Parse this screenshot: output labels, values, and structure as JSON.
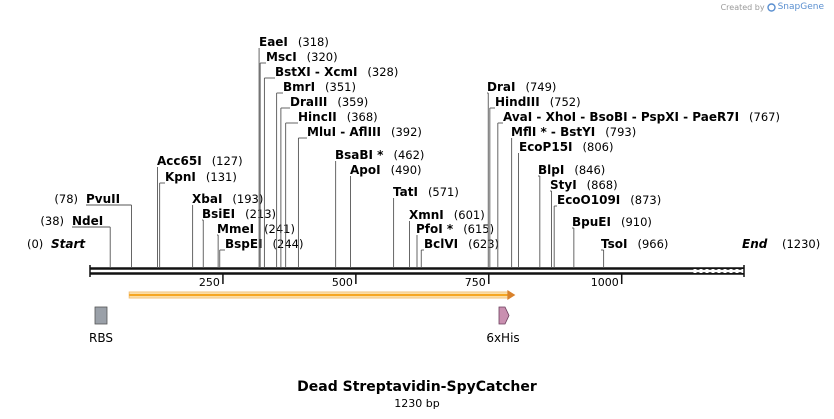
{
  "credit": {
    "prefix": "Created by",
    "brand": "SnapGene",
    "logo_icon": "snapgene-logo-icon"
  },
  "title": "Dead Streptavidin-SpyCatcher",
  "subtitle": "1230 bp",
  "sequence_length": 1230,
  "ruler_ticks": [
    "250",
    "500",
    "750",
    "1000"
  ],
  "sites": [
    {
      "name": "Start",
      "pos": "(0)",
      "bp": 0,
      "side": "marker"
    },
    {
      "name": "NdeI",
      "pos": "(38)",
      "bp": 38,
      "side": "left"
    },
    {
      "name": "PvuII",
      "pos": "(78)",
      "bp": 78,
      "side": "left"
    },
    {
      "name": "Acc65I",
      "pos": "(127)",
      "bp": 127,
      "side": "right"
    },
    {
      "name": "KpnI",
      "pos": "(131)",
      "bp": 131,
      "side": "right"
    },
    {
      "name": "XbaI",
      "pos": "(193)",
      "bp": 193,
      "side": "right"
    },
    {
      "name": "BsiEI",
      "pos": "(213)",
      "bp": 213,
      "side": "right"
    },
    {
      "name": "MmeI",
      "pos": "(241)",
      "bp": 241,
      "side": "right"
    },
    {
      "name": "BspEI",
      "pos": "(244)",
      "bp": 244,
      "side": "right"
    },
    {
      "name": "EaeI",
      "pos": "(318)",
      "bp": 318,
      "side": "right"
    },
    {
      "name": "MscI",
      "pos": "(320)",
      "bp": 320,
      "side": "right"
    },
    {
      "name": "BstXI  -  XcmI",
      "pos": "(328)",
      "bp": 328,
      "side": "right"
    },
    {
      "name": "BmrI",
      "pos": "(351)",
      "bp": 351,
      "side": "right"
    },
    {
      "name": "DraIII",
      "pos": "(359)",
      "bp": 359,
      "side": "right"
    },
    {
      "name": "HincII",
      "pos": "(368)",
      "bp": 368,
      "side": "right"
    },
    {
      "name": "MluI  -  AflIII",
      "pos": "(392)",
      "bp": 392,
      "side": "right"
    },
    {
      "name": "BsaBI *",
      "pos": "(462)",
      "bp": 462,
      "side": "right"
    },
    {
      "name": "ApoI",
      "pos": "(490)",
      "bp": 490,
      "side": "right"
    },
    {
      "name": "TatI",
      "pos": "(571)",
      "bp": 571,
      "side": "right"
    },
    {
      "name": "XmnI",
      "pos": "(601)",
      "bp": 601,
      "side": "right"
    },
    {
      "name": "PfoI *",
      "pos": "(615)",
      "bp": 615,
      "side": "right"
    },
    {
      "name": "BclVI",
      "pos": "(623)",
      "bp": 623,
      "side": "right"
    },
    {
      "name": "DraI",
      "pos": "(749)",
      "bp": 749,
      "side": "right"
    },
    {
      "name": "HindIII",
      "pos": "(752)",
      "bp": 752,
      "side": "right"
    },
    {
      "name": "AvaI  -  XhoI  -  BsoBI  -  PspXI  -  PaeR7I",
      "pos": "(767)",
      "bp": 767,
      "side": "right"
    },
    {
      "name": "MflI *  -  BstYI",
      "pos": "(793)",
      "bp": 793,
      "side": "right"
    },
    {
      "name": "EcoP15I",
      "pos": "(806)",
      "bp": 806,
      "side": "right"
    },
    {
      "name": "BlpI",
      "pos": "(846)",
      "bp": 846,
      "side": "right"
    },
    {
      "name": "StyI",
      "pos": "(868)",
      "bp": 868,
      "side": "right"
    },
    {
      "name": "EcoO109I",
      "pos": "(873)",
      "bp": 873,
      "side": "right"
    },
    {
      "name": "BpuEI",
      "pos": "(910)",
      "bp": 910,
      "side": "right"
    },
    {
      "name": "TsoI",
      "pos": "(966)",
      "bp": 966,
      "side": "right"
    },
    {
      "name": "End",
      "pos": "(1230)",
      "bp": 1230,
      "side": "marker"
    }
  ],
  "features": [
    {
      "name": "orf-arrow",
      "label": "",
      "start": 38,
      "end": 800,
      "type": "orf",
      "color": "#f5a623"
    },
    {
      "name": "rbs",
      "label": "RBS",
      "start": 24,
      "end": 31,
      "type": "box",
      "color": "#9aa0a8"
    },
    {
      "name": "6xhis",
      "label": "6xHis",
      "start": 752,
      "end": 770,
      "type": "arrow",
      "color": "#c98fb0"
    }
  ]
}
